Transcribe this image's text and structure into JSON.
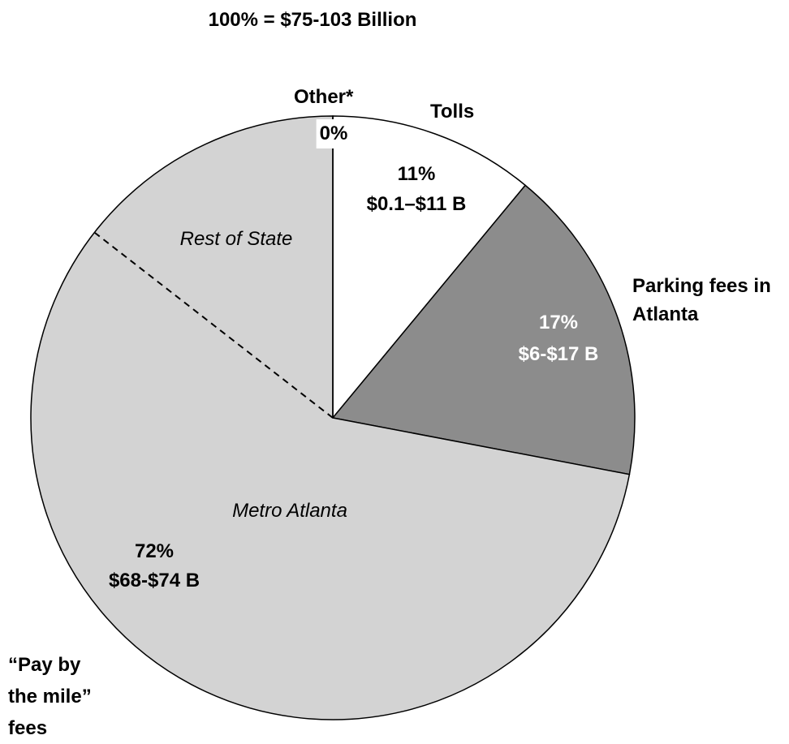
{
  "chart_data": {
    "type": "pie",
    "title": "100% = $75-103 Billion",
    "categories": [
      "Tolls",
      "Parking fees in Atlanta",
      "“Pay by the mile” fees",
      "Other*"
    ],
    "values": [
      11,
      17,
      72,
      0
    ],
    "value_labels": [
      "11%",
      "17%",
      "72%",
      "0%"
    ],
    "range_labels": [
      "$0.1–$11 B",
      "$6-$17 B",
      "$68-$74 B",
      null
    ],
    "colors": [
      "#ffffff",
      "#8c8c8c",
      "#d3d3d3",
      "#ffffff"
    ],
    "label_colors": [
      "#000000",
      "#ffffff",
      "#000000",
      "#000000"
    ],
    "annotations": [
      "Rest of State",
      "Metro Atlanta"
    ]
  }
}
